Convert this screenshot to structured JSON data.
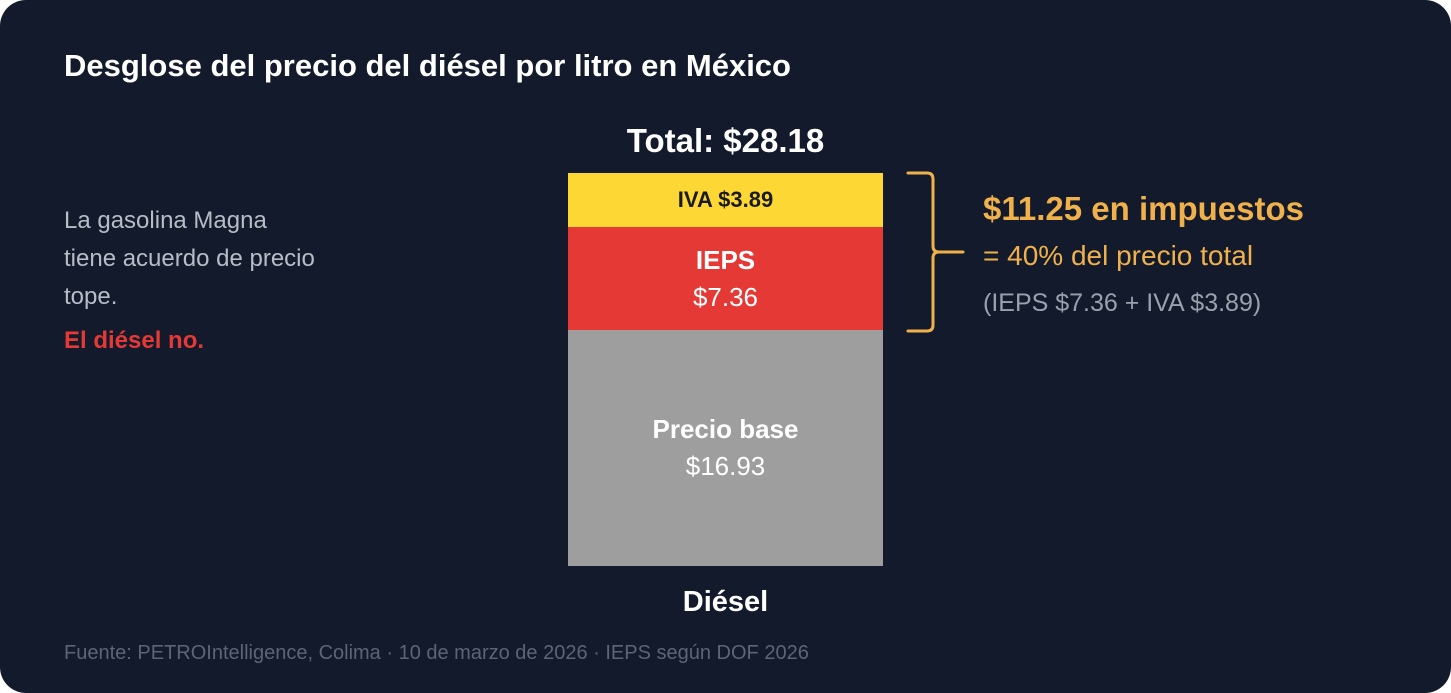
{
  "title": "Desglose del precio del diésel por litro en México",
  "note": {
    "text": "La gasolina Magna tiene acuerdo de precio tope.",
    "alert": "El diésel no."
  },
  "taxes": {
    "headline": "$11.25 en impuestos",
    "percent": "= 40% del precio total",
    "detail": "(IEPS $7.36 + IVA $3.89)"
  },
  "source": "Fuente: PETROIntelligence, Colima  ·  10 de marzo de 2026  ·  IEPS según DOF 2026",
  "colors": {
    "background": "#121a2b",
    "iva": "#fdd835",
    "ieps": "#e53935",
    "base": "#9e9e9e",
    "accent": "#f0b04b"
  },
  "chart_data": {
    "type": "bar",
    "stacked": true,
    "categories": [
      "Diésel"
    ],
    "total_label": "Total: $28.18",
    "total": 28.18,
    "series": [
      {
        "name": "Precio base",
        "value_label": "$16.93",
        "values": [
          16.93
        ],
        "color": "#9e9e9e"
      },
      {
        "name": "IEPS",
        "value_label": "$7.36",
        "values": [
          7.36
        ],
        "color": "#e53935"
      },
      {
        "name": "IVA",
        "value_label": "$3.89",
        "label": "IVA $3.89",
        "values": [
          3.89
        ],
        "color": "#fdd835"
      }
    ]
  }
}
